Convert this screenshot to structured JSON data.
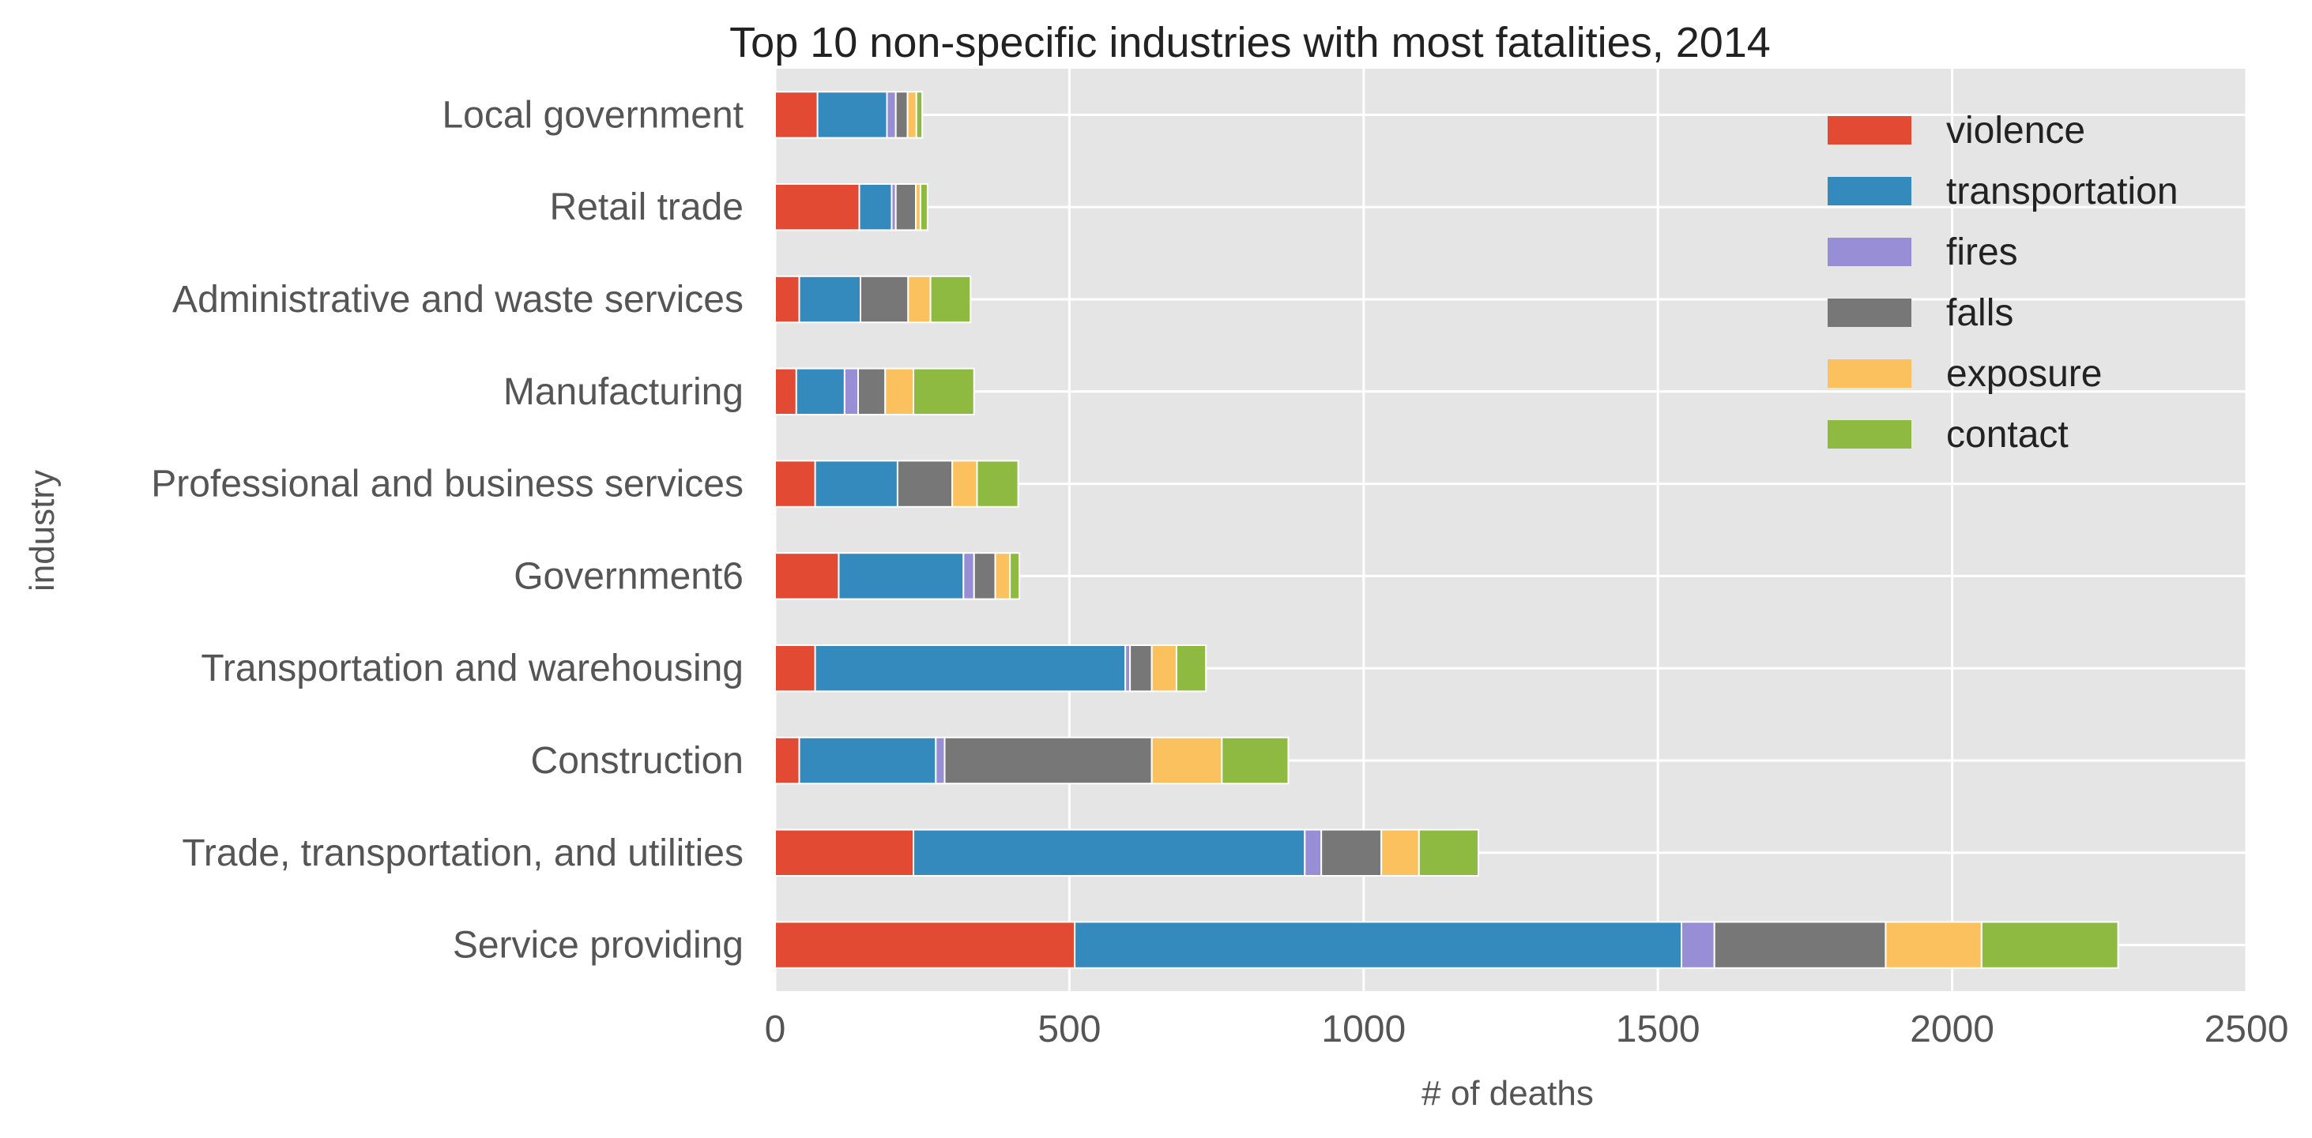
{
  "chart_data": {
    "type": "bar",
    "orientation": "horizontal",
    "stacked": true,
    "title": "Top 10 non-specific industries with most fatalities, 2014",
    "xlabel": "# of deaths",
    "ylabel": "industry",
    "xlim": [
      0,
      2500
    ],
    "xticks": [
      0,
      500,
      1000,
      1500,
      2000,
      2500
    ],
    "grid": true,
    "legend_position": "top-right",
    "categories": [
      "Service providing",
      "Trade, transportation, and utilities",
      "Construction",
      "Transportation and warehousing",
      "Government6",
      "Professional and business services",
      "Manufacturing",
      "Administrative and waste services",
      "Retail trade",
      "Local government"
    ],
    "series": [
      {
        "name": "violence",
        "color": "#e24a33",
        "values": [
          509,
          235,
          41,
          68,
          108,
          68,
          36,
          41,
          143,
          72
        ]
      },
      {
        "name": "transportation",
        "color": "#348abd",
        "values": [
          1031,
          665,
          232,
          527,
          212,
          140,
          82,
          104,
          55,
          118
        ]
      },
      {
        "name": "fires",
        "color": "#988ed5",
        "values": [
          56,
          28,
          15,
          8,
          18,
          0,
          23,
          0,
          7,
          15
        ]
      },
      {
        "name": "falls",
        "color": "#777777",
        "values": [
          291,
          102,
          352,
          37,
          36,
          93,
          46,
          81,
          34,
          20
        ]
      },
      {
        "name": "exposure",
        "color": "#fbc15e",
        "values": [
          163,
          64,
          119,
          42,
          25,
          42,
          48,
          38,
          8,
          15
        ]
      },
      {
        "name": "contact",
        "color": "#8eba42",
        "values": [
          232,
          101,
          113,
          50,
          16,
          70,
          103,
          68,
          12,
          10
        ]
      }
    ]
  }
}
